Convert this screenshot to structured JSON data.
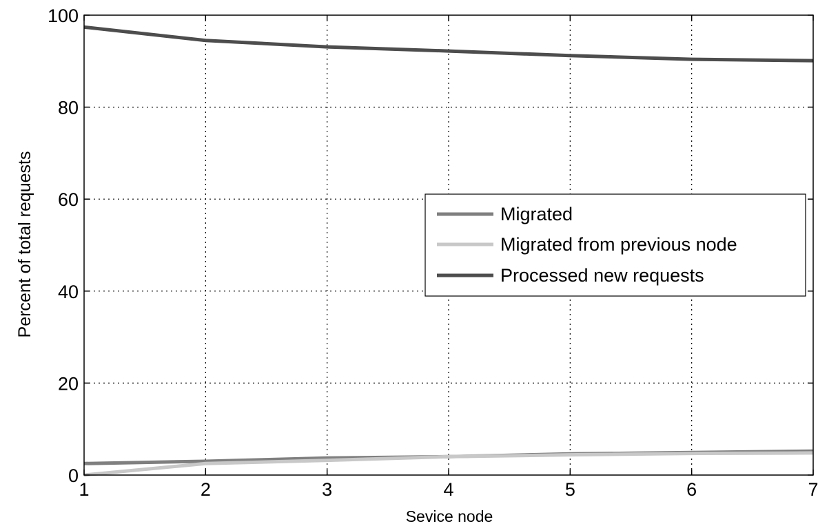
{
  "chart_data": {
    "type": "line",
    "title": "",
    "xlabel": "Sevice node",
    "ylabel": "Percent of total requests",
    "xlim": [
      1,
      7
    ],
    "ylim": [
      0,
      100
    ],
    "x": [
      1,
      2,
      3,
      4,
      5,
      6,
      7
    ],
    "x_ticks": [
      "1",
      "2",
      "3",
      "4",
      "5",
      "6",
      "7"
    ],
    "y_ticks": [
      "0",
      "20",
      "40",
      "60",
      "80",
      "100"
    ],
    "y_tick_values": [
      0,
      20,
      40,
      60,
      80,
      100
    ],
    "grid": true,
    "legend_position": "center-right",
    "series": [
      {
        "name": "Migrated",
        "color": "#7f7f7f",
        "values": [
          2.5,
          3.0,
          3.7,
          4.0,
          4.6,
          4.9,
          5.2
        ]
      },
      {
        "name": "Migrated from previous node",
        "color": "#c8c8c8",
        "values": [
          0.0,
          2.5,
          3.2,
          4.0,
          4.4,
          4.7,
          4.8
        ]
      },
      {
        "name": "Processed new requests",
        "color": "#4d4d4d",
        "values": [
          97.4,
          94.5,
          93.1,
          92.2,
          91.2,
          90.4,
          90.1
        ]
      }
    ]
  }
}
